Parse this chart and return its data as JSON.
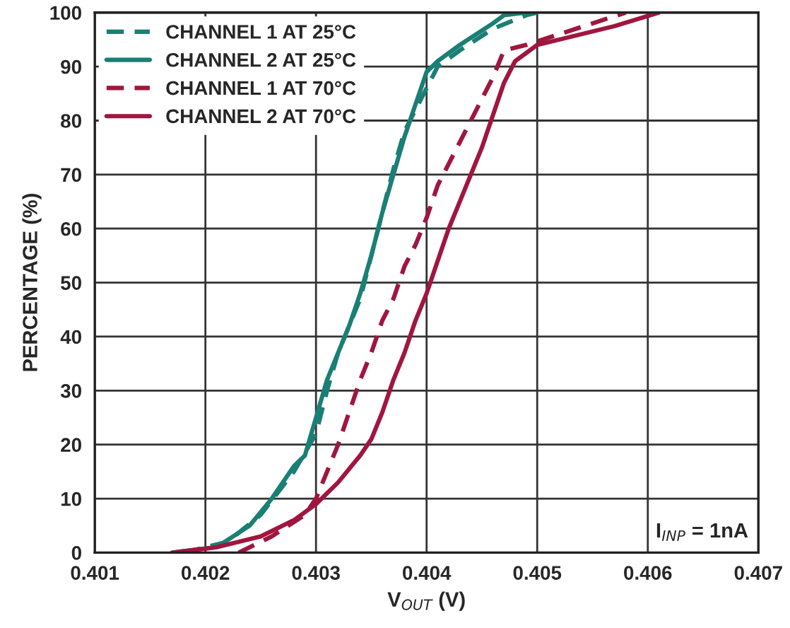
{
  "chart_data": {
    "type": "line",
    "xlabel": "V$_{OUT}$ (V)",
    "ylabel": "PERCENTAGE (%)",
    "xlim": [
      0.401,
      0.407
    ],
    "xticks": [
      0.401,
      0.402,
      0.403,
      0.404,
      0.405,
      0.406,
      0.407
    ],
    "ylim": [
      0,
      100
    ],
    "yticks": [
      0,
      10,
      20,
      30,
      40,
      50,
      60,
      70,
      80,
      90,
      100
    ],
    "grid": true,
    "legend": "top left",
    "annotations": [
      "I$_{INP}$ = 1nA"
    ],
    "series": [
      {
        "name": "CHANNEL 1 AT 25°C",
        "color": "#1a7f74",
        "line_style": "dashed",
        "x": [
          0.4018,
          0.4022,
          0.4025,
          0.4028,
          0.403,
          0.4031,
          0.4032,
          0.4034,
          0.4035,
          0.4036,
          0.4037,
          0.4038,
          0.4039,
          0.404,
          0.4041,
          0.4043,
          0.4046,
          0.4049,
          0.405
        ],
        "values": [
          0,
          2,
          7,
          15,
          22,
          30,
          37,
          47,
          55,
          63,
          71,
          78,
          82,
          86,
          90,
          93,
          97,
          99.5,
          100
        ]
      },
      {
        "name": "CHANNEL 2 AT 25°C",
        "color": "#1a7f74",
        "line_style": "solid",
        "x": [
          0.4017,
          0.4021,
          0.4024,
          0.4026,
          0.4028,
          0.4029,
          0.403,
          0.4031,
          0.4032,
          0.4033,
          0.4034,
          0.4035,
          0.4036,
          0.4037,
          0.4038,
          0.4039,
          0.404,
          0.4041,
          0.4043,
          0.4046,
          0.4047,
          0.4049
        ],
        "values": [
          0,
          1,
          5,
          10,
          16,
          18,
          25,
          32,
          37,
          42,
          48,
          55,
          63,
          70,
          77,
          83,
          89,
          91,
          94,
          98,
          99.5,
          100
        ]
      },
      {
        "name": "CHANNEL 1 AT 70°C",
        "color": "#a0163e",
        "line_style": "dashed",
        "x": [
          0.4023,
          0.4026,
          0.4029,
          0.403,
          0.4031,
          0.4032,
          0.4033,
          0.4034,
          0.4035,
          0.4036,
          0.4037,
          0.4038,
          0.4039,
          0.404,
          0.4041,
          0.4042,
          0.4043,
          0.4044,
          0.4045,
          0.4046,
          0.4047,
          0.4049,
          0.4052,
          0.4055,
          0.4058
        ],
        "values": [
          0,
          3,
          7,
          10,
          15,
          20,
          26,
          32,
          37,
          43,
          47,
          53,
          57,
          62,
          68,
          72,
          76,
          80,
          84,
          88,
          93,
          94,
          96,
          98,
          100
        ]
      },
      {
        "name": "CHANNEL 2 AT 70°C",
        "color": "#a0163e",
        "line_style": "solid",
        "x": [
          0.4017,
          0.4021,
          0.4025,
          0.4028,
          0.403,
          0.4032,
          0.4034,
          0.4035,
          0.4036,
          0.4037,
          0.4038,
          0.4039,
          0.404,
          0.4041,
          0.4042,
          0.4043,
          0.4044,
          0.4045,
          0.4046,
          0.4047,
          0.4048,
          0.405,
          0.4053,
          0.4057,
          0.4061
        ],
        "values": [
          0,
          1,
          3,
          6,
          9,
          13,
          18,
          21,
          26,
          32,
          37,
          43,
          48,
          54,
          60,
          65,
          70,
          75,
          81,
          87,
          91,
          94,
          95.5,
          97.5,
          100
        ]
      }
    ]
  }
}
